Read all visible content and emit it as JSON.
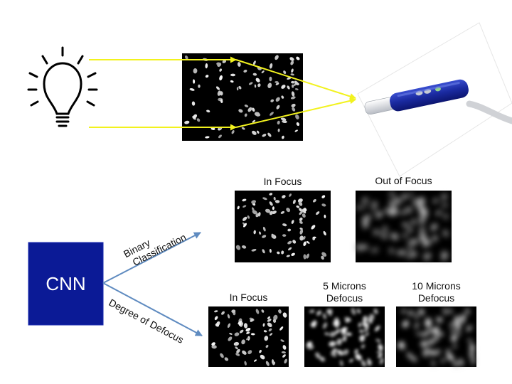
{
  "colors": {
    "cnn_box": "#0b1a96",
    "flow_arrow": "#f2f21e",
    "branch_arrow": "#5f8bc0",
    "nuclei": "#d4d4d4",
    "image_bg": "#000000"
  },
  "icons": {
    "light_source": "light-bulb-icon",
    "microscope": "handheld-microscope-probe-icon"
  },
  "cnn": {
    "label": "CNN"
  },
  "branches": {
    "binary": {
      "label_line1": "Binary",
      "label_line2": "Classification",
      "images": [
        {
          "caption": "In Focus",
          "focus": "sharp"
        },
        {
          "caption": "Out of Focus",
          "focus": "blurred"
        }
      ]
    },
    "defocus": {
      "label": "Degree of Defocus",
      "images": [
        {
          "caption_line1": "In Focus",
          "caption_line2": "",
          "focus": "sharp"
        },
        {
          "caption_line1": "5 Microns",
          "caption_line2": "Defocus",
          "focus": "mild_blur"
        },
        {
          "caption_line1": "10 Microns",
          "caption_line2": "Defocus",
          "focus": "strong_blur"
        }
      ]
    }
  }
}
